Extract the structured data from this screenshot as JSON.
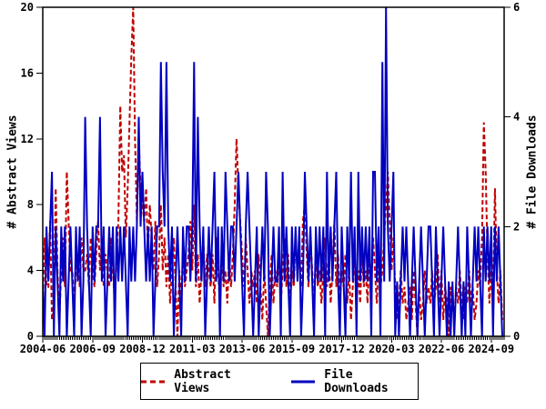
{
  "chart_data": {
    "type": "line",
    "title": "",
    "x_axis": {
      "start_month": "2004-06",
      "end_month": "2025-03",
      "months_total": 250,
      "minor_tick_every_months": 1,
      "tick_month_indices": [
        0,
        27,
        54,
        81,
        108,
        135,
        162,
        189,
        216,
        243
      ],
      "tick_labels": [
        "2004-06",
        "2006-09",
        "2008-12",
        "2011-03",
        "2013-06",
        "2015-09",
        "2017-12",
        "2020-03",
        "2022-06",
        "2024-09"
      ]
    },
    "y_left": {
      "label": "# Abstract Views",
      "ticks": [
        0,
        4,
        8,
        12,
        16,
        20
      ],
      "range": [
        0,
        20
      ]
    },
    "y_right": {
      "label": "# File Downloads",
      "ticks": [
        0,
        2,
        4,
        6
      ],
      "range": [
        0,
        6
      ]
    },
    "grid": false,
    "legend": {
      "position": "bottom-center",
      "entries": [
        "Abstract Views",
        "File Downloads"
      ]
    },
    "colors": {
      "abstract_views": "#c00000",
      "file_downloads": "#0000c0",
      "frame": "#000000"
    },
    "series": [
      {
        "name": "Abstract Views",
        "axis": "left",
        "style": "dashed",
        "color": "#c00000",
        "values": [
          2,
          6,
          3,
          3,
          7,
          1,
          2,
          9,
          4,
          1,
          4,
          6,
          3,
          10,
          7,
          4,
          4,
          2,
          4,
          5,
          3,
          6,
          4,
          4,
          5,
          3,
          6,
          4,
          3,
          5,
          7,
          4,
          6,
          3,
          5,
          4,
          3,
          6,
          4,
          2,
          5,
          7,
          14,
          10,
          11,
          6,
          9,
          13,
          17,
          20,
          12,
          7,
          12,
          9,
          8,
          7,
          9,
          5,
          8,
          6,
          4,
          7,
          3,
          5,
          8,
          4,
          6,
          3,
          5,
          2,
          4,
          6,
          3,
          0,
          4,
          2,
          5,
          3,
          4,
          5,
          7,
          4,
          8,
          3,
          5,
          2,
          4,
          6,
          3,
          5,
          4,
          3,
          5,
          2,
          6,
          4,
          2,
          5,
          3,
          4,
          2,
          5,
          3,
          5,
          8,
          12,
          9,
          7,
          5,
          3,
          6,
          4,
          2,
          4,
          3,
          4,
          2,
          5,
          3,
          1,
          4,
          2,
          0,
          3,
          5,
          2,
          4,
          3,
          5,
          2,
          4,
          6,
          3,
          5,
          2,
          4,
          3,
          6,
          4,
          5,
          3,
          7,
          8,
          5,
          3,
          6,
          4,
          2,
          5,
          3,
          4,
          2,
          4,
          6,
          3,
          5,
          2,
          4,
          7,
          3,
          5,
          2,
          4,
          3,
          5,
          2,
          4,
          1,
          3,
          5,
          2,
          4,
          2,
          5,
          3,
          4,
          2,
          5,
          3,
          6,
          4,
          2,
          5,
          3,
          4,
          6,
          8,
          10,
          7,
          4,
          6,
          3,
          1,
          2,
          4,
          2,
          3,
          1,
          2,
          3,
          1,
          4,
          2,
          0,
          3,
          1,
          2,
          4,
          2,
          3,
          2,
          4,
          2,
          3,
          5,
          2,
          4,
          1,
          3,
          2,
          0,
          3,
          2,
          1,
          3,
          2,
          4,
          2,
          1,
          3,
          2,
          4,
          2,
          3,
          1,
          2,
          4,
          3,
          6,
          13,
          10,
          5,
          2,
          4,
          2,
          9,
          4,
          2,
          4,
          1
        ]
      },
      {
        "name": "File Downloads",
        "axis": "right",
        "style": "solid",
        "color": "#0000c0",
        "values": [
          1,
          0,
          2,
          1,
          2,
          3,
          0,
          2,
          1,
          0,
          2,
          1,
          2,
          0,
          1,
          2,
          1,
          0,
          2,
          1,
          2,
          0,
          1,
          4,
          2,
          1,
          0,
          2,
          1,
          2,
          2,
          4,
          1,
          2,
          0,
          1,
          2,
          1,
          2,
          0,
          2,
          1,
          2,
          1,
          2,
          1,
          0,
          2,
          1,
          2,
          1,
          2,
          4,
          2,
          3,
          2,
          1,
          2,
          1,
          2,
          0,
          1,
          2,
          2,
          5,
          3,
          2,
          5,
          2,
          1,
          2,
          0,
          1,
          2,
          1,
          0,
          2,
          1,
          2,
          2,
          1,
          2,
          5,
          1,
          4,
          2,
          1,
          2,
          0,
          1,
          2,
          1,
          2,
          3,
          1,
          2,
          0,
          2,
          1,
          3,
          2,
          1,
          2,
          2,
          1,
          2,
          3,
          2,
          1,
          0,
          2,
          3,
          2,
          1,
          0,
          1,
          2,
          0,
          1,
          2,
          1,
          3,
          2,
          0,
          1,
          2,
          1,
          1,
          2,
          0,
          3,
          1,
          2,
          1,
          0,
          2,
          1,
          2,
          1,
          2,
          0,
          1,
          3,
          2,
          1,
          2,
          1,
          0,
          2,
          1,
          2,
          1,
          2,
          0,
          3,
          1,
          2,
          1,
          2,
          3,
          1,
          0,
          2,
          1,
          0,
          2,
          1,
          3,
          1,
          2,
          0,
          3,
          1,
          2,
          1,
          2,
          1,
          2,
          0,
          3,
          3,
          1,
          2,
          0,
          5,
          1,
          6,
          2,
          1,
          2,
          3,
          0,
          1,
          0,
          1,
          2,
          1,
          2,
          1,
          0,
          1,
          2,
          1,
          0,
          1,
          2,
          1,
          0,
          1,
          2,
          2,
          1,
          0,
          2,
          1,
          0,
          1,
          2,
          1,
          0,
          1,
          0,
          1,
          0,
          1,
          2,
          1,
          0,
          1,
          0,
          2,
          1,
          0,
          1,
          2,
          1,
          2,
          1,
          0,
          2,
          1,
          2,
          1,
          2,
          0,
          2,
          1,
          2,
          1,
          0
        ]
      }
    ]
  }
}
